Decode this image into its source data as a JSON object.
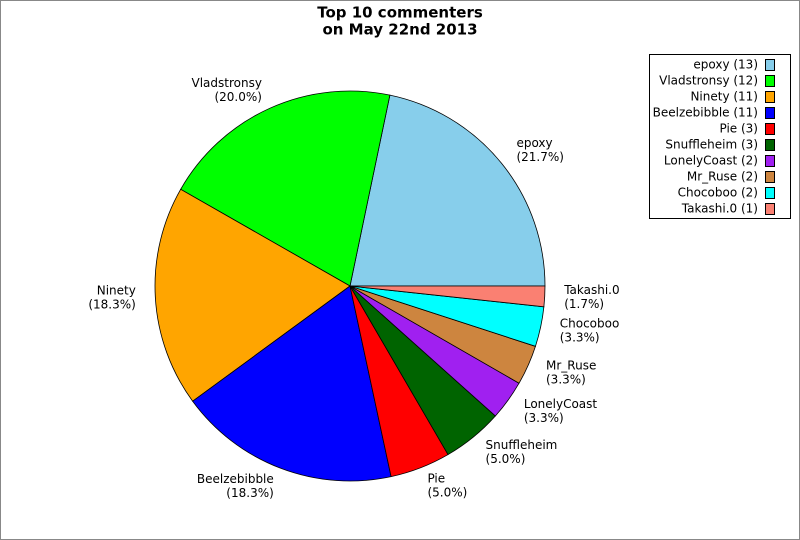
{
  "chart_data": {
    "type": "pie",
    "title": [
      "Top 10 commenters",
      "on May 22nd 2013"
    ],
    "categories": [
      "epoxy",
      "Vladstronsy",
      "Ninety",
      "Beelzebibble",
      "Pie",
      "Snuffleheim",
      "LonelyCoast",
      "Mr_Ruse",
      "Chocoboo",
      "Takashi.0"
    ],
    "values": [
      21.7,
      20.0,
      18.3,
      18.3,
      5.0,
      5.0,
      3.3,
      3.3,
      3.3,
      1.7
    ],
    "value_labels": [
      "(21.7%)",
      "(20.0%)",
      "(18.3%)",
      "(18.3%)",
      "(5.0%)",
      "(5.0%)",
      "(3.3%)",
      "(3.3%)",
      "(3.3%)",
      "(1.7%)"
    ],
    "legend_labels": [
      "epoxy (13)",
      "Vladstronsy (12)",
      "Ninety (11)",
      "Beelzebibble (11)",
      "Pie (3)",
      "Snuffleheim (3)",
      "LonelyCoast (2)",
      "Mr_Ruse (2)",
      "Chocoboo (2)",
      "Takashi.0 (1)"
    ],
    "colors": [
      "#87ceeb",
      "#00ff00",
      "#ffa500",
      "#0000ff",
      "#ff0000",
      "#006400",
      "#a020f0",
      "#cd853f",
      "#00ffff",
      "#fa8072"
    ],
    "legend": "upper right"
  }
}
